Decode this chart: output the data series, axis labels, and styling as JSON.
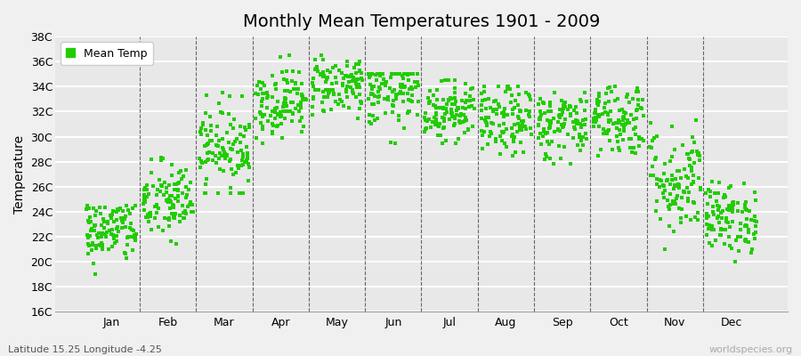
{
  "title": "Monthly Mean Temperatures 1901 - 2009",
  "ylabel": "Temperature",
  "xlabel_bottom_left": "Latitude 15.25 Longitude -4.25",
  "xlabel_bottom_right": "worldspecies.org",
  "legend_label": "Mean Temp",
  "dot_color": "#22cc00",
  "background_color": "#f0f0f0",
  "plot_bg_color": "#e8e8e8",
  "grid_color": "#ffffff",
  "ytick_labels": [
    "16C",
    "18C",
    "20C",
    "22C",
    "24C",
    "26C",
    "28C",
    "30C",
    "32C",
    "34C",
    "36C",
    "38C"
  ],
  "ytick_values": [
    16,
    18,
    20,
    22,
    24,
    26,
    28,
    30,
    32,
    34,
    36,
    38
  ],
  "months": [
    "Jan",
    "Feb",
    "Mar",
    "Apr",
    "May",
    "Jun",
    "Jul",
    "Aug",
    "Sep",
    "Oct",
    "Nov",
    "Dec"
  ],
  "month_means": [
    22.5,
    24.8,
    29.2,
    32.8,
    34.2,
    33.5,
    32.2,
    31.2,
    31.0,
    31.5,
    26.5,
    23.5
  ],
  "month_stds": [
    1.3,
    1.6,
    1.7,
    1.4,
    1.2,
    1.4,
    1.3,
    1.4,
    1.4,
    1.5,
    2.2,
    1.4
  ],
  "month_mins": [
    17.5,
    20.5,
    25.5,
    29.5,
    31.5,
    29.5,
    29.5,
    27.5,
    27.5,
    28.5,
    21.0,
    20.0
  ],
  "month_maxs": [
    24.5,
    28.5,
    33.5,
    36.5,
    36.5,
    35.0,
    34.5,
    34.0,
    33.5,
    34.0,
    31.5,
    26.5
  ],
  "n_years": 109,
  "ylim": [
    16,
    38
  ],
  "xlim_left": 0.0,
  "xlim_right": 13.0,
  "title_fontsize": 14,
  "axis_fontsize": 10,
  "tick_fontsize": 9,
  "marker_size": 3,
  "vline_positions": [
    1.5,
    2.5,
    3.5,
    4.5,
    5.5,
    6.5,
    7.5,
    8.5,
    9.5,
    10.5,
    11.5
  ],
  "xtick_positions": [
    1.0,
    2.0,
    3.0,
    4.0,
    5.0,
    6.0,
    7.0,
    8.0,
    9.0,
    10.0,
    11.0,
    12.0
  ]
}
